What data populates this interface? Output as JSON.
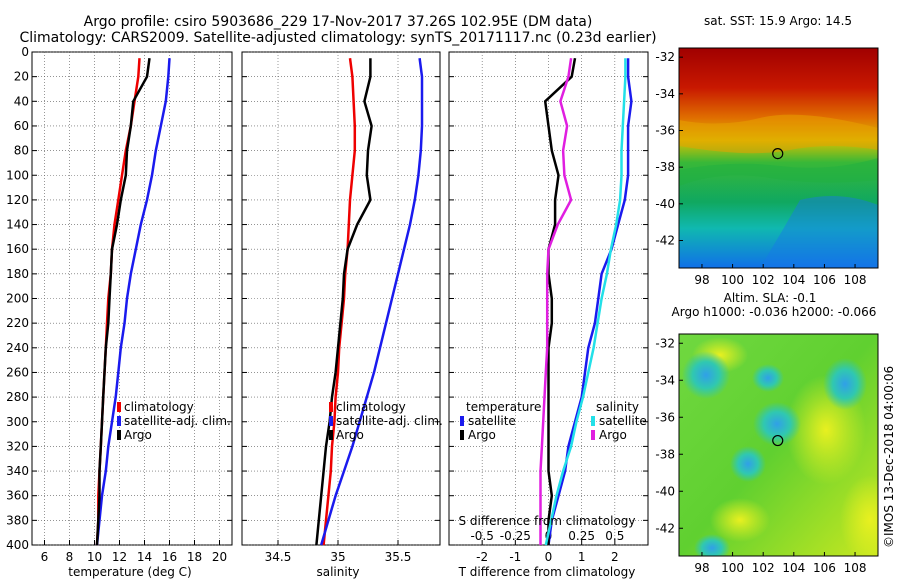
{
  "title_line1": "Argo profile: csiro 5903686_229 17-Nov-2017 37.26S 102.95E (DM data)",
  "title_line2": "Climatology: CARS2009. Satellite-adjusted climatology: synTS_20171117.nc (0.23d earlier)",
  "footer": "©IMOS 13-Dec-2018 04:00:06",
  "colors": {
    "climatology": "#ee0000",
    "satellite": "#1a1aee",
    "argo": "#000000",
    "cyan": "#22e0e8",
    "magenta": "#e01ee0"
  },
  "chart_data": [
    {
      "type": "line",
      "name": "temperature",
      "xlabel": "temperature (deg C)",
      "ylabel": "depth",
      "xlim": [
        5,
        21
      ],
      "ylim": [
        0,
        400
      ],
      "xticks": [
        6,
        8,
        10,
        12,
        14,
        16,
        18,
        20
      ],
      "yticks": [
        0,
        20,
        40,
        60,
        80,
        100,
        120,
        140,
        160,
        180,
        200,
        220,
        240,
        260,
        280,
        300,
        320,
        340,
        360,
        380,
        400
      ],
      "legend": [
        "climatology",
        "satellite-adj. clim.",
        "Argo"
      ],
      "depth": [
        5,
        20,
        40,
        60,
        80,
        100,
        120,
        140,
        160,
        180,
        200,
        220,
        240,
        260,
        280,
        300,
        320,
        340,
        360,
        380,
        400
      ],
      "series": [
        {
          "name": "climatology",
          "values": [
            13.6,
            13.5,
            13.2,
            12.9,
            12.5,
            12.2,
            11.9,
            11.6,
            11.4,
            11.3,
            11.1,
            11.0,
            10.9,
            10.8,
            10.7,
            10.6,
            10.5,
            10.4,
            10.3,
            10.3,
            10.2
          ]
        },
        {
          "name": "satellite-adj. clim.",
          "values": [
            16.0,
            15.9,
            15.7,
            15.3,
            14.9,
            14.6,
            14.2,
            13.7,
            13.3,
            12.9,
            12.6,
            12.4,
            12.1,
            11.9,
            11.7,
            11.4,
            11.1,
            10.9,
            10.6,
            10.4,
            10.2
          ]
        },
        {
          "name": "Argo",
          "values": [
            14.4,
            14.2,
            13.1,
            12.9,
            12.6,
            12.5,
            12.1,
            11.8,
            11.4,
            11.3,
            11.2,
            11.1,
            10.9,
            10.8,
            10.7,
            10.6,
            10.5,
            10.4,
            10.4,
            10.3,
            10.2
          ]
        }
      ]
    },
    {
      "type": "line",
      "name": "salinity",
      "xlabel": "salinity",
      "ylabel": "depth",
      "xlim": [
        34.2,
        35.85
      ],
      "ylim": [
        0,
        400
      ],
      "xticks": [
        "34.5",
        "35",
        "35.5"
      ],
      "legend": [
        "climatology",
        "satellite-adj. clim.",
        "Argo"
      ],
      "depth": [
        5,
        20,
        40,
        60,
        80,
        100,
        120,
        140,
        160,
        180,
        200,
        220,
        240,
        260,
        280,
        300,
        320,
        340,
        360,
        380,
        400
      ],
      "series": [
        {
          "name": "climatology",
          "values": [
            35.1,
            35.12,
            35.13,
            35.14,
            35.14,
            35.12,
            35.1,
            35.09,
            35.08,
            35.06,
            35.05,
            35.03,
            35.01,
            35.0,
            34.98,
            34.97,
            34.95,
            34.94,
            34.92,
            34.9,
            34.88
          ]
        },
        {
          "name": "satellite-adj. clim.",
          "values": [
            35.68,
            35.7,
            35.7,
            35.7,
            35.69,
            35.67,
            35.64,
            35.6,
            35.55,
            35.5,
            35.45,
            35.4,
            35.35,
            35.3,
            35.24,
            35.18,
            35.12,
            35.05,
            34.98,
            34.92,
            34.86
          ]
        },
        {
          "name": "Argo",
          "values": [
            35.27,
            35.27,
            35.22,
            35.28,
            35.25,
            35.24,
            35.27,
            35.16,
            35.08,
            35.05,
            35.04,
            35.02,
            35.0,
            34.98,
            34.95,
            34.93,
            34.9,
            34.88,
            34.86,
            34.84,
            34.82
          ]
        }
      ]
    },
    {
      "type": "line",
      "name": "difference from climatology",
      "xlabel": "T difference from climatology",
      "xlabel_top": "S difference from climatology",
      "ylabel": "depth",
      "xlim": [
        -3,
        3
      ],
      "ylim": [
        0,
        400
      ],
      "xticks": [
        "-2",
        "-1",
        "0",
        "1",
        "2"
      ],
      "xticks_top": [
        "-0.5",
        "-0.25",
        "0",
        "0.25",
        "0.5"
      ],
      "legend_left_title": "temperature",
      "legend_right_title": "salinity",
      "legend_left": [
        "satellite",
        "Argo"
      ],
      "legend_right": [
        "satellite",
        "Argo"
      ],
      "depth": [
        5,
        20,
        40,
        60,
        80,
        100,
        120,
        140,
        160,
        180,
        200,
        220,
        240,
        260,
        280,
        300,
        320,
        340,
        360,
        380,
        400
      ],
      "series": [
        {
          "name": "T satellite",
          "values": [
            2.4,
            2.4,
            2.5,
            2.4,
            2.4,
            2.4,
            2.3,
            2.1,
            1.9,
            1.6,
            1.5,
            1.4,
            1.2,
            1.1,
            1.0,
            0.8,
            0.6,
            0.5,
            0.3,
            0.1,
            0.0
          ]
        },
        {
          "name": "T Argo",
          "values": [
            0.8,
            0.7,
            -0.1,
            0.0,
            0.1,
            0.3,
            0.2,
            0.2,
            0.0,
            0.0,
            0.1,
            0.1,
            0.0,
            0.0,
            0.0,
            0.0,
            0.0,
            0.0,
            0.1,
            0.0,
            0.0
          ]
        },
        {
          "name": "S satellite",
          "values": [
            0.58,
            0.58,
            0.57,
            0.56,
            0.55,
            0.55,
            0.54,
            0.51,
            0.47,
            0.44,
            0.4,
            0.37,
            0.34,
            0.3,
            0.26,
            0.21,
            0.17,
            0.11,
            0.06,
            0.02,
            -0.02
          ]
        },
        {
          "name": "S Argo",
          "values": [
            0.17,
            0.15,
            0.09,
            0.14,
            0.11,
            0.12,
            0.17,
            0.07,
            0.0,
            -0.01,
            -0.01,
            -0.01,
            -0.01,
            -0.02,
            -0.03,
            -0.04,
            -0.05,
            -0.06,
            -0.06,
            -0.06,
            -0.06
          ]
        }
      ]
    }
  ],
  "maps": [
    {
      "title": "sat. SST: 15.9 Argo: 14.5",
      "xticks": [
        "98",
        "100",
        "102",
        "104",
        "106",
        "108"
      ],
      "yticks": [
        "-32",
        "-34",
        "-36",
        "-38",
        "-40",
        "-42"
      ],
      "lon_range": [
        96.5,
        109.5
      ],
      "lat_range": [
        -31.5,
        -43.5
      ],
      "marker_lon": 102.95,
      "marker_lat": -37.26
    },
    {
      "title": "Altim. SLA: -0.1",
      "subtitle": "Argo h1000: -0.036 h2000: -0.066",
      "xticks": [
        "98",
        "100",
        "102",
        "104",
        "106",
        "108"
      ],
      "yticks": [
        "-32",
        "-34",
        "-36",
        "-38",
        "-40",
        "-42"
      ],
      "lon_range": [
        96.5,
        109.5
      ],
      "lat_range": [
        -31.5,
        -43.5
      ],
      "marker_lon": 102.95,
      "marker_lat": -37.26
    }
  ]
}
